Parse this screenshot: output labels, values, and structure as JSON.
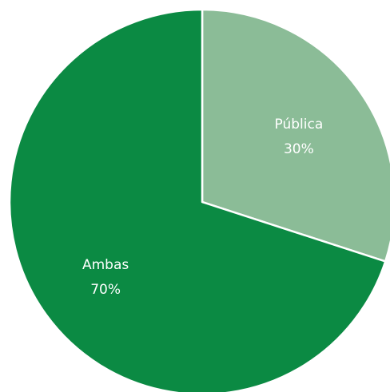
{
  "chart_data": {
    "type": "pie",
    "title": "",
    "start_angle_deg": 0,
    "direction": "clockwise",
    "slices": [
      {
        "label": "Pública",
        "value": 30,
        "value_label": "30%",
        "color": "#8bbc97"
      },
      {
        "label": "Ambas",
        "value": 70,
        "value_label": "70%",
        "color": "#0b8a43"
      }
    ],
    "slice_border_color": "#ffffff",
    "legend": "none"
  }
}
